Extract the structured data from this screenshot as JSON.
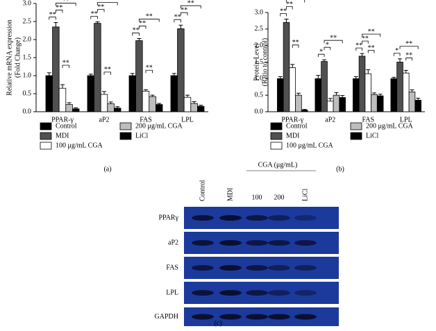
{
  "chart_data": [
    {
      "type": "bar",
      "ylabel": [
        "Relative mRNA expression",
        "(Fold Change)"
      ],
      "panel": "(a)",
      "categories": [
        "PPAR-γ",
        "aP2",
        "FAS",
        "LPL"
      ],
      "series": [
        {
          "name": "Control",
          "color": "#000000",
          "values": [
            1.0,
            1.0,
            1.0,
            1.0
          ],
          "errors": [
            0.08,
            0.04,
            0.06,
            0.06
          ]
        },
        {
          "name": "MDI",
          "color": "#505050",
          "values": [
            2.35,
            2.45,
            1.97,
            2.3
          ],
          "errors": [
            0.12,
            0.04,
            0.06,
            0.1
          ]
        },
        {
          "name": "100 μg/mL CGA",
          "color": "#ffffff",
          "values": [
            0.65,
            0.48,
            0.57,
            0.4
          ],
          "errors": [
            0.1,
            0.08,
            0.04,
            0.06
          ]
        },
        {
          "name": "200 μg/mL CGA",
          "color": "#bdbdbd",
          "values": [
            0.2,
            0.22,
            0.42,
            0.23
          ],
          "errors": [
            0.05,
            0.05,
            0.04,
            0.05
          ]
        },
        {
          "name": "LiCl",
          "color": "#000000",
          "values": [
            0.08,
            0.1,
            0.2,
            0.15
          ],
          "errors": [
            0.03,
            0.04,
            0.03,
            0.03
          ]
        }
      ],
      "significance": [
        [
          {
            "text": "**",
            "pair": [
              0,
              1
            ]
          },
          {
            "text": "**",
            "pair": [
              1,
              2
            ]
          },
          {
            "text": "**",
            "pair": [
              1,
              4
            ]
          },
          {
            "text": "**",
            "pair": [
              2,
              3
            ]
          }
        ],
        [
          {
            "text": "**",
            "pair": [
              0,
              1
            ]
          },
          {
            "text": "**",
            "pair": [
              1,
              2
            ]
          },
          {
            "text": "**",
            "pair": [
              1,
              4
            ]
          },
          {
            "text": "**",
            "pair": [
              2,
              3
            ]
          }
        ],
        [
          {
            "text": "**",
            "pair": [
              0,
              1
            ]
          },
          {
            "text": "**",
            "pair": [
              1,
              2
            ]
          },
          {
            "text": "**",
            "pair": [
              1,
              4
            ]
          },
          {
            "text": "**",
            "pair": [
              2,
              3
            ]
          }
        ],
        [
          {
            "text": "**",
            "pair": [
              0,
              1
            ]
          },
          {
            "text": "**",
            "pair": [
              1,
              2
            ]
          },
          {
            "text": "**",
            "pair": [
              1,
              4
            ]
          }
        ]
      ],
      "ylim": [
        0,
        3
      ],
      "yticks": [
        {
          "value": 0,
          "label": "0.0"
        },
        0.5,
        {
          "value": 1,
          "label": "1.0"
        },
        1.5,
        {
          "value": 2,
          "label": "2.0"
        },
        2.5,
        {
          "value": 3,
          "label": "3.0"
        }
      ]
    },
    {
      "type": "bar",
      "ylabel": [
        "Protein Level",
        "(Ratio to control)"
      ],
      "panel": "(b)",
      "categories": [
        "PPAR-γ",
        "aP2",
        "FAS",
        "LPL"
      ],
      "series": [
        {
          "name": "Control",
          "color": "#000000",
          "values": [
            1.0,
            1.0,
            1.0,
            1.0
          ],
          "errors": [
            0.06,
            0.1,
            0.06,
            0.04
          ]
        },
        {
          "name": "MDI",
          "color": "#505050",
          "values": [
            2.7,
            1.52,
            1.68,
            1.5
          ],
          "errors": [
            0.1,
            0.05,
            0.08,
            0.1
          ]
        },
        {
          "name": "100 μg/mL CGA",
          "color": "#ffffff",
          "values": [
            1.33,
            0.32,
            1.15,
            1.17
          ],
          "errors": [
            0.1,
            0.08,
            0.12,
            0.08
          ]
        },
        {
          "name": "200 μg/mL CGA",
          "color": "#bdbdbd",
          "values": [
            0.5,
            0.5,
            0.52,
            0.6
          ],
          "errors": [
            0.06,
            0.08,
            0.05,
            0.06
          ]
        },
        {
          "name": "LiCl",
          "color": "#000000",
          "values": [
            0.05,
            0.43,
            0.48,
            0.35
          ],
          "errors": [
            0.02,
            0.06,
            0.05,
            0.06
          ]
        }
      ],
      "significance": [
        [
          {
            "text": "**",
            "pair": [
              0,
              1
            ]
          },
          {
            "text": "**",
            "pair": [
              1,
              2
            ]
          },
          {
            "text": "**",
            "pair": [
              1,
              4
            ]
          },
          {
            "text": "**",
            "pair": [
              2,
              3
            ]
          }
        ],
        [
          {
            "text": "*",
            "pair": [
              0,
              1
            ]
          },
          {
            "text": "*",
            "pair": [
              1,
              2
            ]
          },
          {
            "text": "**",
            "pair": [
              1,
              4
            ]
          }
        ],
        [
          {
            "text": "**",
            "pair": [
              0,
              1
            ]
          },
          {
            "text": "**",
            "pair": [
              1,
              2
            ]
          },
          {
            "text": "**",
            "pair": [
              1,
              4
            ]
          },
          {
            "text": "**",
            "pair": [
              2,
              3
            ]
          }
        ],
        [
          {
            "text": "*",
            "pair": [
              0,
              1
            ]
          },
          {
            "text": "**",
            "pair": [
              1,
              4
            ]
          },
          {
            "text": "**",
            "pair": [
              2,
              3
            ]
          }
        ]
      ],
      "ylim": [
        0,
        3
      ],
      "yticks": [
        {
          "value": 0,
          "label": "0.0"
        },
        0.5,
        {
          "value": 1,
          "label": "1.0"
        },
        1.5,
        {
          "value": 2,
          "label": "2.0"
        },
        2.5,
        {
          "value": 3,
          "label": "3.0"
        }
      ]
    }
  ],
  "blot": {
    "group_label": "CGA (μg/mL)",
    "columns": [
      "Control",
      "MDI",
      "100",
      "200",
      "LiCl"
    ],
    "rows": [
      "PPARγ",
      "aP2",
      "FAS",
      "LPL",
      "GAPDH"
    ],
    "panel": "(c)"
  }
}
